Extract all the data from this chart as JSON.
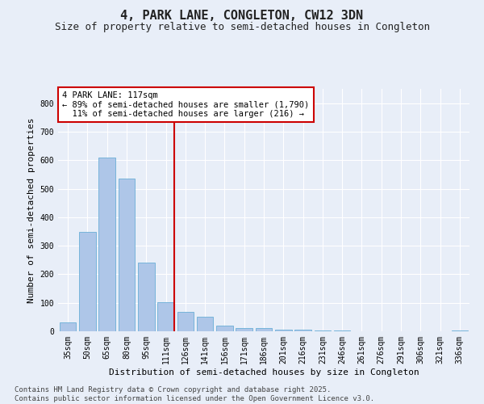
{
  "title": "4, PARK LANE, CONGLETON, CW12 3DN",
  "subtitle": "Size of property relative to semi-detached houses in Congleton",
  "xlabel": "Distribution of semi-detached houses by size in Congleton",
  "ylabel": "Number of semi-detached properties",
  "categories": [
    "35sqm",
    "50sqm",
    "65sqm",
    "80sqm",
    "95sqm",
    "111sqm",
    "126sqm",
    "141sqm",
    "156sqm",
    "171sqm",
    "186sqm",
    "201sqm",
    "216sqm",
    "231sqm",
    "246sqm",
    "261sqm",
    "276sqm",
    "291sqm",
    "306sqm",
    "321sqm",
    "336sqm"
  ],
  "values": [
    30,
    348,
    608,
    535,
    240,
    103,
    68,
    50,
    20,
    12,
    10,
    7,
    7,
    3,
    2,
    1,
    0,
    0,
    0,
    0,
    3
  ],
  "bar_color": "#aec6e8",
  "bar_edge_color": "#6aaed6",
  "vline_x_index": 5,
  "vline_color": "#cc0000",
  "annotation_text": "4 PARK LANE: 117sqm\n← 89% of semi-detached houses are smaller (1,790)\n  11% of semi-detached houses are larger (216) →",
  "annotation_box_color": "#ffffff",
  "annotation_box_edge_color": "#cc0000",
  "ylim": [
    0,
    850
  ],
  "yticks": [
    0,
    100,
    200,
    300,
    400,
    500,
    600,
    700,
    800
  ],
  "background_color": "#e8eef8",
  "grid_color": "#ffffff",
  "footnote": "Contains HM Land Registry data © Crown copyright and database right 2025.\nContains public sector information licensed under the Open Government Licence v3.0.",
  "title_fontsize": 11,
  "subtitle_fontsize": 9,
  "xlabel_fontsize": 8,
  "ylabel_fontsize": 8,
  "tick_fontsize": 7,
  "annotation_fontsize": 7.5,
  "footnote_fontsize": 6.5
}
